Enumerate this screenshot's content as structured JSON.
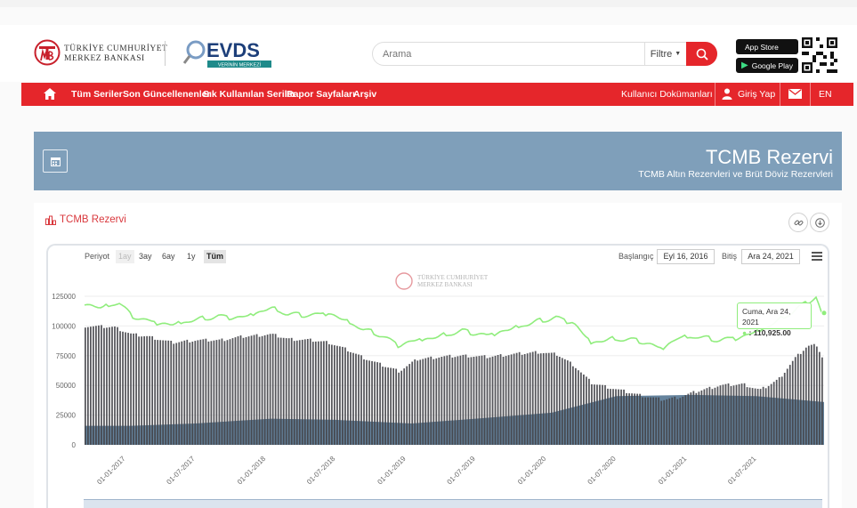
{
  "header": {
    "org_line1": "TÜRKİYE CUMHURİYET",
    "org_line2": "MERKEZ BANKASI",
    "evds_name": "EVDS",
    "evds_tagline": "VERİNİN MERKEZİ",
    "search_placeholder": "Arama",
    "filter_label": "Filtre",
    "app_store": "App Store",
    "google_play": "Google Play"
  },
  "nav": {
    "items": [
      "Tüm Seriler",
      "Son Güncellenenler",
      "Sık Kullanılan Seriler",
      "Rapor Sayfaları",
      "Arşiv"
    ],
    "docs": "Kullanıcı Dokümanları",
    "login": "Giriş Yap",
    "lang": "EN"
  },
  "banner": {
    "title": "TCMB Rezervi",
    "subtitle": "TCMB Altın Rezervleri ve Brüt Döviz Rezervleri"
  },
  "card": {
    "title": "TCMB Rezervi"
  },
  "controls": {
    "period_label": "Periyot",
    "periods": [
      "1ay",
      "3ay",
      "6ay",
      "1y",
      "Tüm"
    ],
    "start_label": "Başlangıç",
    "start_value": "Eyl 16, 2016",
    "end_label": "Bitiş",
    "end_value": "Ara 24, 2021"
  },
  "watermark": {
    "line1": "TÜRKİYE CUMHURİYET",
    "line2": "MERKEZ BANKASI"
  },
  "tooltip": {
    "date": "Cuma, Ara 24, 2021",
    "value": ": 110,925.00"
  },
  "colors": {
    "brand_red": "#e5262b",
    "banner_blue": "#7f9fba",
    "line_green": "#90ed7d",
    "bar_dark": "#434348",
    "area_blue": "#4a6d8c"
  },
  "chart_data": {
    "type": "bar",
    "ylim": [
      0,
      125000
    ],
    "yticks": [
      0,
      25000,
      50000,
      75000,
      100000,
      125000
    ],
    "xticks": [
      "01-01-2017",
      "01-07-2017",
      "01-01-2018",
      "01-07-2018",
      "01-01-2019",
      "01-07-2019",
      "01-01-2020",
      "01-07-2020",
      "01-01-2021",
      "01-07-2021"
    ],
    "x_range": [
      "2016-09-16",
      "2021-12-24"
    ],
    "series": [
      {
        "type": "line",
        "color": "#90ed7d",
        "points": [
          [
            "2016-09-16",
            119000
          ],
          [
            "2016-11-01",
            115000
          ],
          [
            "2016-12-15",
            120000
          ],
          [
            "2017-01-15",
            109000
          ],
          [
            "2017-03-01",
            104000
          ],
          [
            "2017-05-01",
            101000
          ],
          [
            "2017-07-01",
            105000
          ],
          [
            "2017-09-01",
            108000
          ],
          [
            "2017-11-01",
            107000
          ],
          [
            "2018-01-15",
            115000
          ],
          [
            "2018-03-01",
            110000
          ],
          [
            "2018-05-01",
            109000
          ],
          [
            "2018-06-15",
            111000
          ],
          [
            "2018-08-01",
            104000
          ],
          [
            "2018-09-15",
            97000
          ],
          [
            "2018-11-01",
            92000
          ],
          [
            "2018-12-15",
            84000
          ],
          [
            "2019-02-01",
            88000
          ],
          [
            "2019-04-01",
            91000
          ],
          [
            "2019-06-01",
            96000
          ],
          [
            "2019-08-01",
            92000
          ],
          [
            "2019-10-01",
            97000
          ],
          [
            "2019-12-15",
            104000
          ],
          [
            "2020-02-01",
            107000
          ],
          [
            "2020-03-15",
            103000
          ],
          [
            "2020-05-01",
            86000
          ],
          [
            "2020-07-01",
            89000
          ],
          [
            "2020-09-01",
            88000
          ],
          [
            "2020-11-01",
            81000
          ],
          [
            "2020-12-15",
            90000
          ],
          [
            "2021-02-01",
            91000
          ],
          [
            "2021-04-01",
            88000
          ],
          [
            "2021-06-01",
            91000
          ],
          [
            "2021-07-15",
            96000
          ],
          [
            "2021-09-01",
            104000
          ],
          [
            "2021-10-15",
            113000
          ],
          [
            "2021-11-15",
            120000
          ],
          [
            "2021-12-10",
            124000
          ],
          [
            "2021-12-24",
            110925
          ]
        ]
      },
      {
        "type": "column",
        "color": "#434348",
        "points": [
          [
            "2016-09-16",
            100000
          ],
          [
            "2016-12-01",
            99000
          ],
          [
            "2017-01-15",
            93000
          ],
          [
            "2017-03-01",
            91000
          ],
          [
            "2017-05-01",
            86000
          ],
          [
            "2017-07-01",
            88000
          ],
          [
            "2017-09-01",
            88000
          ],
          [
            "2017-11-01",
            91000
          ],
          [
            "2018-01-15",
            93000
          ],
          [
            "2018-03-01",
            89000
          ],
          [
            "2018-05-01",
            88000
          ],
          [
            "2018-06-15",
            86000
          ],
          [
            "2018-08-01",
            80000
          ],
          [
            "2018-09-15",
            73000
          ],
          [
            "2018-11-01",
            67000
          ],
          [
            "2018-12-15",
            62000
          ],
          [
            "2019-02-01",
            72000
          ],
          [
            "2019-04-01",
            74000
          ],
          [
            "2019-06-01",
            75000
          ],
          [
            "2019-08-01",
            74000
          ],
          [
            "2019-10-01",
            76000
          ],
          [
            "2019-12-15",
            78000
          ],
          [
            "2020-02-01",
            76000
          ],
          [
            "2020-03-15",
            67000
          ],
          [
            "2020-05-01",
            52000
          ],
          [
            "2020-07-01",
            47000
          ],
          [
            "2020-09-01",
            42000
          ],
          [
            "2020-11-01",
            38000
          ],
          [
            "2020-12-15",
            40000
          ],
          [
            "2021-02-01",
            45000
          ],
          [
            "2021-04-01",
            50000
          ],
          [
            "2021-06-01",
            51000
          ],
          [
            "2021-07-15",
            46000
          ],
          [
            "2021-09-01",
            55000
          ],
          [
            "2021-10-15",
            73000
          ],
          [
            "2021-11-15",
            83000
          ],
          [
            "2021-12-10",
            84000
          ],
          [
            "2021-12-24",
            74000
          ]
        ]
      },
      {
        "type": "area",
        "color": "#4a6d8c",
        "points": [
          [
            "2016-09-16",
            16000
          ],
          [
            "2017-01-15",
            16000
          ],
          [
            "2017-07-01",
            18000
          ],
          [
            "2018-01-15",
            22000
          ],
          [
            "2018-07-01",
            21000
          ],
          [
            "2019-01-15",
            18000
          ],
          [
            "2019-07-01",
            22000
          ],
          [
            "2020-01-15",
            27000
          ],
          [
            "2020-07-01",
            41000
          ],
          [
            "2021-01-15",
            42000
          ],
          [
            "2021-07-01",
            41000
          ],
          [
            "2021-12-24",
            36000
          ]
        ]
      }
    ]
  }
}
